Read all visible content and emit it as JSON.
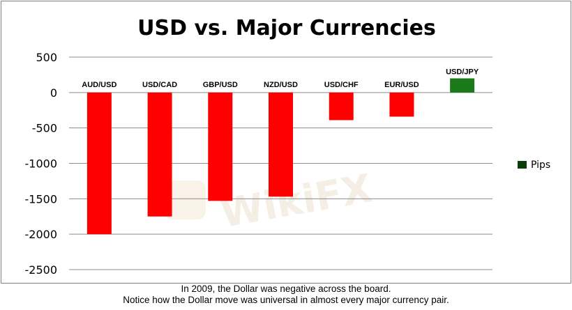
{
  "chart_data": {
    "type": "bar",
    "title": "USD vs. Major Currencies",
    "categories": [
      "AUD/USD",
      "USD/CAD",
      "GBP/USD",
      "NZD/USD",
      "USD/CHF",
      "EUR/USD",
      "USD/JPY"
    ],
    "series": [
      {
        "name": "Pips",
        "values": [
          -2000,
          -1750,
          -1530,
          -1470,
          -390,
          -340,
          200
        ]
      }
    ],
    "ylim": [
      -2500,
      500
    ],
    "yticks": [
      500,
      0,
      -500,
      -1000,
      -1500,
      -2000,
      -2500
    ],
    "grid": true,
    "legend_position": "right",
    "colors": {
      "negative": "#ff0000",
      "positive": "#1a7a1a",
      "legend_swatch": "#0b3d0b",
      "grid": "#8c8c8c"
    }
  },
  "caption": {
    "line1": "In 2009, the Dollar was negative across the board.",
    "line2": "Notice how the Dollar move was universal in almost every major currency pair."
  },
  "watermark": {
    "text": "WikiFX"
  }
}
